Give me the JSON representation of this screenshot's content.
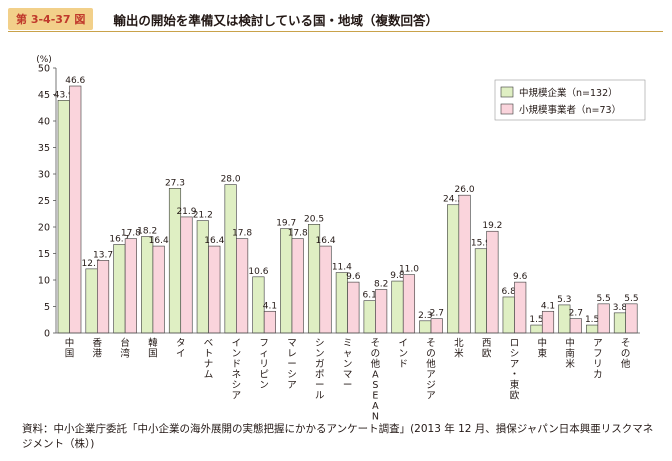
{
  "figure": {
    "label": "第 3-4-37 図",
    "title": "輸出の開始を準備又は検討している国・地域（複数回答）",
    "source": "資料：中小企業庁委託「中小企業の海外展開の実態把握にかかるアンケート調査」(2013 年 12 月、損保ジャパン日本興亜リスクマネジメント（株）)"
  },
  "chart_data": {
    "type": "bar",
    "ylabel": "(%)",
    "ylim": [
      0,
      50
    ],
    "yticks": [
      0,
      5,
      10,
      15,
      20,
      25,
      30,
      35,
      40,
      45,
      50
    ],
    "grid": false,
    "legend_position": "top-right",
    "categories": [
      "中国",
      "香港",
      "台湾",
      "韓国",
      "タイ",
      "ベトナム",
      "インドネシア",
      "フィリピン",
      "マレーシア",
      "シンガポール",
      "ミャンマー",
      "その他ASEAN",
      "インド",
      "その他アジア",
      "北米",
      "西欧",
      "ロシア・東欧",
      "中東",
      "中南米",
      "アフリカ",
      "その他"
    ],
    "series": [
      {
        "name": "中規模企業（n=132）",
        "color": "#dfefc3",
        "values": [
          43.9,
          12.1,
          16.7,
          18.2,
          27.3,
          21.2,
          28.0,
          10.6,
          19.7,
          20.5,
          11.4,
          6.1,
          9.8,
          2.3,
          24.2,
          15.9,
          6.8,
          1.5,
          5.3,
          1.5,
          3.8
        ]
      },
      {
        "name": "小規模事業者（n=73）",
        "color": "#fad4dc",
        "values": [
          46.6,
          13.7,
          17.8,
          16.4,
          21.9,
          16.4,
          17.8,
          4.1,
          17.8,
          16.4,
          9.6,
          8.2,
          11.0,
          2.7,
          26.0,
          19.2,
          9.6,
          4.1,
          2.7,
          5.5,
          5.5
        ]
      }
    ]
  }
}
